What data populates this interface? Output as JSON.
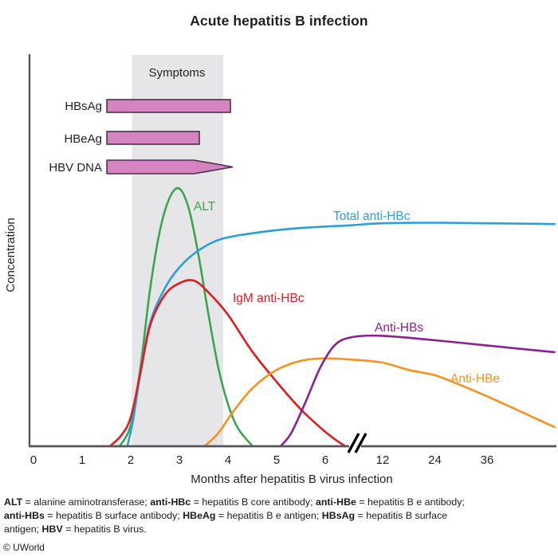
{
  "title": "Acute hepatitis B infection",
  "copyright": "© UWorld",
  "colors": {
    "band": "#e6e6e8",
    "bar_fill": "#d584c1",
    "bar_stroke": "#463349",
    "axis": "#55565a",
    "text": "#231f20",
    "break_mark": "#000000"
  },
  "chart_data": {
    "type": "line",
    "title": "Acute hepatitis B infection",
    "xlabel": "Months after hepatitis B virus infection",
    "ylabel": "Concentration",
    "x_ticks": [
      {
        "m": 0,
        "label": "0"
      },
      {
        "m": 1,
        "label": "1"
      },
      {
        "m": 2,
        "label": "2"
      },
      {
        "m": 3,
        "label": "3"
      },
      {
        "m": 4,
        "label": "4"
      },
      {
        "m": 5,
        "label": "5"
      },
      {
        "m": 6,
        "label": "6"
      },
      {
        "m": 12,
        "label": "12"
      },
      {
        "m": 24,
        "label": "24"
      },
      {
        "m": 36,
        "label": "36"
      }
    ],
    "x_axis_break": {
      "between": [
        6,
        12
      ]
    },
    "y_axis": {
      "label": "Concentration",
      "ticks": "none (relative concentration)"
    },
    "symptoms_band": {
      "label": "Symptoms",
      "start_month": 2.02,
      "end_month": 3.9
    },
    "bars": [
      {
        "label": "HBsAg",
        "shape": "rect",
        "start_month": 1.51,
        "end_month": 4.05,
        "y": 125,
        "h": 16
      },
      {
        "label": "HBeAg",
        "shape": "rect",
        "start_month": 1.51,
        "end_month": 3.41,
        "y": 165,
        "h": 16
      },
      {
        "label": "HBV DNA",
        "shape": "arrow",
        "start_month": 1.51,
        "end_month": 4.1,
        "taper_month": 3.3,
        "y": 201,
        "h": 17
      }
    ],
    "series": [
      {
        "name": "ALT",
        "label": "ALT",
        "color": "#3aa54e",
        "label_pos": [
          243,
          264
        ],
        "label_anchor": "start",
        "points": [
          [
            1.77,
            0
          ],
          [
            2.0,
            0.08
          ],
          [
            2.2,
            0.3
          ],
          [
            2.4,
            0.6
          ],
          [
            2.6,
            0.82
          ],
          [
            2.8,
            0.945
          ],
          [
            3.0,
            0.98
          ],
          [
            3.2,
            0.9
          ],
          [
            3.4,
            0.72
          ],
          [
            3.6,
            0.5
          ],
          [
            3.8,
            0.3
          ],
          [
            4.0,
            0.16
          ],
          [
            4.2,
            0.07
          ],
          [
            4.5,
            0
          ]
        ]
      },
      {
        "name": "Total anti-HBc",
        "label": "Total anti-HBc",
        "color": "#29a0d8",
        "label_pos": [
          418,
          276
        ],
        "label_anchor": "start",
        "points": [
          [
            1.93,
            0
          ],
          [
            2.05,
            0.1
          ],
          [
            2.2,
            0.28
          ],
          [
            2.4,
            0.47
          ],
          [
            2.7,
            0.6
          ],
          [
            3.0,
            0.68
          ],
          [
            3.4,
            0.745
          ],
          [
            3.9,
            0.79
          ],
          [
            4.7,
            0.815
          ],
          [
            5.5,
            0.83
          ],
          [
            6.5,
            0.84
          ],
          [
            12,
            0.848
          ],
          [
            24,
            0.85
          ],
          [
            36,
            0.848
          ],
          [
            51.5,
            0.845
          ]
        ]
      },
      {
        "name": "IgM anti-HBc",
        "label": "IgM anti-HBc",
        "color": "#e11b22",
        "label_pos": [
          292,
          379
        ],
        "label_anchor": "start",
        "points": [
          [
            1.57,
            0
          ],
          [
            1.8,
            0.04
          ],
          [
            2.0,
            0.11
          ],
          [
            2.2,
            0.28
          ],
          [
            2.4,
            0.46
          ],
          [
            2.7,
            0.575
          ],
          [
            3.0,
            0.62
          ],
          [
            3.3,
            0.63
          ],
          [
            3.6,
            0.585
          ],
          [
            4.0,
            0.5
          ],
          [
            4.5,
            0.36
          ],
          [
            5.0,
            0.245
          ],
          [
            5.5,
            0.14
          ],
          [
            6.0,
            0.055
          ],
          [
            6.4,
            0
          ]
        ]
      },
      {
        "name": "Anti-HBe",
        "label": "Anti-HBe",
        "color": "#f6921e",
        "label_pos": [
          565,
          480
        ],
        "label_anchor": "start",
        "points": [
          [
            3.52,
            0
          ],
          [
            3.8,
            0.05
          ],
          [
            4.1,
            0.13
          ],
          [
            4.5,
            0.22
          ],
          [
            5.0,
            0.29
          ],
          [
            5.5,
            0.325
          ],
          [
            6.0,
            0.334
          ],
          [
            6.5,
            0.33
          ],
          [
            12,
            0.318
          ],
          [
            18,
            0.29
          ],
          [
            24,
            0.27
          ],
          [
            30,
            0.232
          ],
          [
            36,
            0.19
          ],
          [
            44,
            0.13
          ],
          [
            51.5,
            0.073
          ]
        ]
      },
      {
        "name": "Anti-HBs",
        "label": "Anti-HBs",
        "color": "#8b2190",
        "label_pos": [
          470,
          416
        ],
        "label_anchor": "start",
        "points": [
          [
            5.08,
            0
          ],
          [
            5.3,
            0.05
          ],
          [
            5.6,
            0.17
          ],
          [
            5.9,
            0.3
          ],
          [
            6.2,
            0.385
          ],
          [
            6.55,
            0.415
          ],
          [
            12,
            0.42
          ],
          [
            24,
            0.403
          ],
          [
            36,
            0.383
          ],
          [
            51.5,
            0.358
          ]
        ]
      }
    ]
  },
  "footer": {
    "lines": [
      [
        {
          "t": "ALT",
          "b": true
        },
        {
          "t": " = alanine aminotransferase; "
        },
        {
          "t": "anti-HBc",
          "b": true
        },
        {
          "t": " = hepatitis B core antibody; "
        },
        {
          "t": "anti-HBe",
          "b": true
        },
        {
          "t": " = hepatitis B e antibody;"
        }
      ],
      [
        {
          "t": "anti-HBs",
          "b": true
        },
        {
          "t": " = hepatitis B surface antibody; "
        },
        {
          "t": "HBeAg",
          "b": true
        },
        {
          "t": " = hepatitis B e antigen; "
        },
        {
          "t": "HBsAg",
          "b": true
        },
        {
          "t": " = hepatitis B surface"
        }
      ],
      [
        {
          "t": "antigen; "
        },
        {
          "t": "HBV",
          "b": true
        },
        {
          "t": " = hepatitis B virus."
        }
      ]
    ]
  }
}
